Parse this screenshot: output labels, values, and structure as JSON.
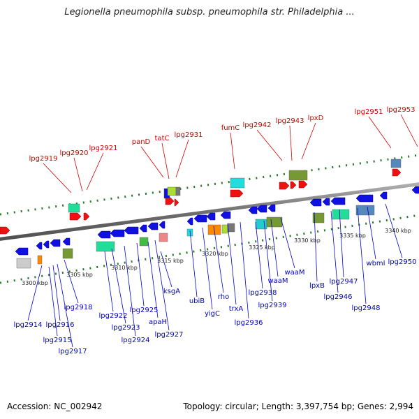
{
  "title": "Legionella pneumophila subsp. pneumophila str. Philadelphia ...",
  "footer": {
    "accession": "Accession: NC_002942",
    "summary": "Topology: circular; Length: 3,397,754 bp; Genes: 2,994"
  },
  "colors": {
    "forward_label": "#d40000",
    "reverse_label": "#0000cc",
    "backbone": "#808080",
    "tick": "#2a7a2a"
  },
  "tick_labels": [
    "3300 kbp",
    "3305 kbp",
    "3310 kbp",
    "3315 kbp",
    "3320 kbp",
    "3325 kbp",
    "3330 kbp",
    "3335 kbp",
    "3340 kbp"
  ],
  "forward_labels": [
    "lpg2919",
    "lpg2920",
    "lpg2921",
    "panD",
    "tatC",
    "lpg2931",
    "fumC",
    "lpg2942",
    "lpg2943",
    "lpxD",
    "lpg2951",
    "lpg2953"
  ],
  "reverse_labels": [
    "lpg2914",
    "lpg2915",
    "lpg2916",
    "lpg2917",
    "lpg2918",
    "lpg2922",
    "lpg2923",
    "lpg2924",
    "lpg2925",
    "apaH",
    "lpg2927",
    "ksgA",
    "ubiB",
    "yigC",
    "rho",
    "trxA",
    "lpg2936",
    "lpg2938",
    "lpg2939",
    "waaM",
    "waaM",
    "lpxB",
    "lpg2946",
    "lpg2947",
    "lpg2948",
    "wbmI",
    "lpg2950"
  ]
}
